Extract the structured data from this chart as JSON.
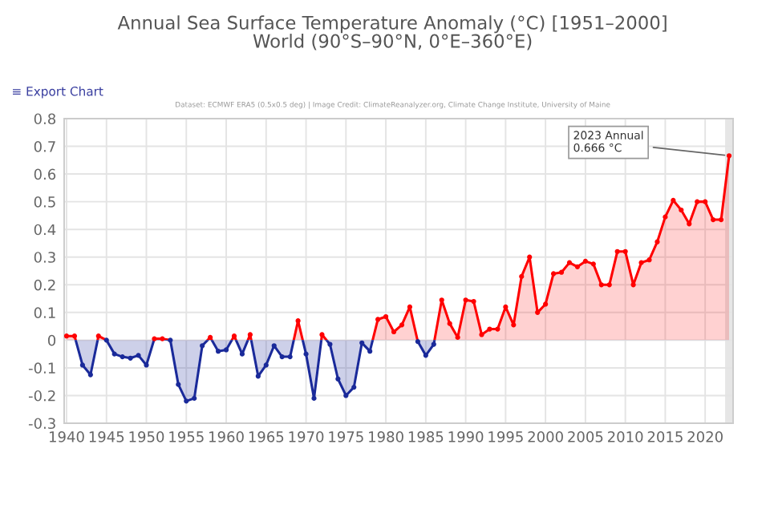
{
  "chart_data": {
    "type": "area",
    "title": "Annual Sea Surface Temperature Anomaly (°C) [1951–2000]\nWorld (90°S–90°N, 0°E–360°E)",
    "subtitle": "Dataset: ECMWF ERA5 (0.5x0.5 deg) | Image Credit: ClimateReanalyzer.org, Climate Change Institute, University of Maine",
    "annotations": [
      "≡ Export Chart",
      {
        "text": "2023 Annual\n0.666 °C",
        "x": 2023,
        "y": 0.666
      }
    ],
    "x": [
      1940,
      1941,
      1942,
      1943,
      1944,
      1945,
      1946,
      1947,
      1948,
      1949,
      1950,
      1951,
      1952,
      1953,
      1954,
      1955,
      1956,
      1957,
      1958,
      1959,
      1960,
      1961,
      1962,
      1963,
      1964,
      1965,
      1966,
      1967,
      1968,
      1969,
      1970,
      1971,
      1972,
      1973,
      1974,
      1975,
      1976,
      1977,
      1978,
      1979,
      1980,
      1981,
      1982,
      1983,
      1984,
      1985,
      1986,
      1987,
      1988,
      1989,
      1990,
      1991,
      1992,
      1993,
      1994,
      1995,
      1996,
      1997,
      1998,
      1999,
      2000,
      2001,
      2002,
      2003,
      2004,
      2005,
      2006,
      2007,
      2008,
      2009,
      2010,
      2011,
      2012,
      2013,
      2014,
      2015,
      2016,
      2017,
      2018,
      2019,
      2020,
      2021,
      2022,
      2023
    ],
    "values": [
      0.015,
      0.015,
      -0.09,
      -0.125,
      0.015,
      0.0,
      -0.05,
      -0.06,
      -0.065,
      -0.055,
      -0.09,
      0.005,
      0.005,
      0.0,
      -0.16,
      -0.22,
      -0.21,
      -0.02,
      0.01,
      -0.04,
      -0.035,
      0.015,
      -0.05,
      0.02,
      -0.13,
      -0.09,
      -0.02,
      -0.06,
      -0.06,
      0.07,
      -0.05,
      -0.21,
      0.02,
      -0.015,
      -0.14,
      -0.2,
      -0.17,
      -0.01,
      -0.04,
      0.075,
      0.085,
      0.03,
      0.055,
      0.12,
      -0.005,
      -0.055,
      -0.015,
      0.145,
      0.06,
      0.01,
      0.145,
      0.14,
      0.02,
      0.04,
      0.04,
      0.12,
      0.055,
      0.23,
      0.3,
      0.1,
      0.13,
      0.24,
      0.245,
      0.28,
      0.265,
      0.285,
      0.275,
      0.2,
      0.2,
      0.32,
      0.32,
      0.2,
      0.28,
      0.29,
      0.355,
      0.445,
      0.505,
      0.47,
      0.42,
      0.5,
      0.5,
      0.435,
      0.435,
      0.666
    ],
    "colors": [
      "#ff0000",
      "#ff0000",
      "#1a2a9a",
      "#1a2a9a",
      "#ff0000",
      "#1a2a9a",
      "#1a2a9a",
      "#1a2a9a",
      "#1a2a9a",
      "#1a2a9a",
      "#1a2a9a",
      "#ff0000",
      "#ff0000",
      "#1a2a9a",
      "#1a2a9a",
      "#1a2a9a",
      "#1a2a9a",
      "#1a2a9a",
      "#ff0000",
      "#1a2a9a",
      "#1a2a9a",
      "#ff0000",
      "#1a2a9a",
      "#ff0000",
      "#1a2a9a",
      "#1a2a9a",
      "#1a2a9a",
      "#1a2a9a",
      "#1a2a9a",
      "#ff0000",
      "#1a2a9a",
      "#1a2a9a",
      "#ff0000",
      "#1a2a9a",
      "#1a2a9a",
      "#1a2a9a",
      "#1a2a9a",
      "#1a2a9a",
      "#1a2a9a",
      "#ff0000",
      "#ff0000",
      "#ff0000",
      "#ff0000",
      "#ff0000",
      "#1a2a9a",
      "#1a2a9a",
      "#1a2a9a",
      "#ff0000",
      "#ff0000",
      "#ff0000",
      "#ff0000",
      "#ff0000",
      "#ff0000",
      "#ff0000",
      "#ff0000",
      "#ff0000",
      "#ff0000",
      "#ff0000",
      "#ff0000",
      "#ff0000",
      "#ff0000",
      "#ff0000",
      "#ff0000",
      "#ff0000",
      "#ff0000",
      "#ff0000",
      "#ff0000",
      "#ff0000",
      "#ff0000",
      "#ff0000",
      "#ff0000",
      "#ff0000",
      "#ff0000",
      "#ff0000",
      "#ff0000",
      "#ff0000",
      "#ff0000",
      "#ff0000",
      "#ff0000",
      "#ff0000",
      "#ff0000",
      "#ff0000",
      "#ff0000",
      "#ff0000"
    ],
    "bands": [
      {
        "axis": "x",
        "from": 2022.5,
        "to": 2023.5,
        "color": "#e6e6e6"
      }
    ],
    "xlim": [
      1939.7,
      2023.5
    ],
    "xticks": [
      1940,
      1945,
      1950,
      1955,
      1960,
      1965,
      1970,
      1975,
      1980,
      1985,
      1990,
      1995,
      2000,
      2005,
      2010,
      2015,
      2020
    ],
    "ylim": [
      -0.3,
      0.8
    ],
    "yticks": [
      -0.3,
      -0.2,
      -0.1,
      0,
      0.1,
      0.2,
      0.3,
      0.4,
      0.5,
      0.6,
      0.7,
      0.8
    ],
    "grid": true,
    "marker": "circle",
    "line_style": "solid"
  }
}
